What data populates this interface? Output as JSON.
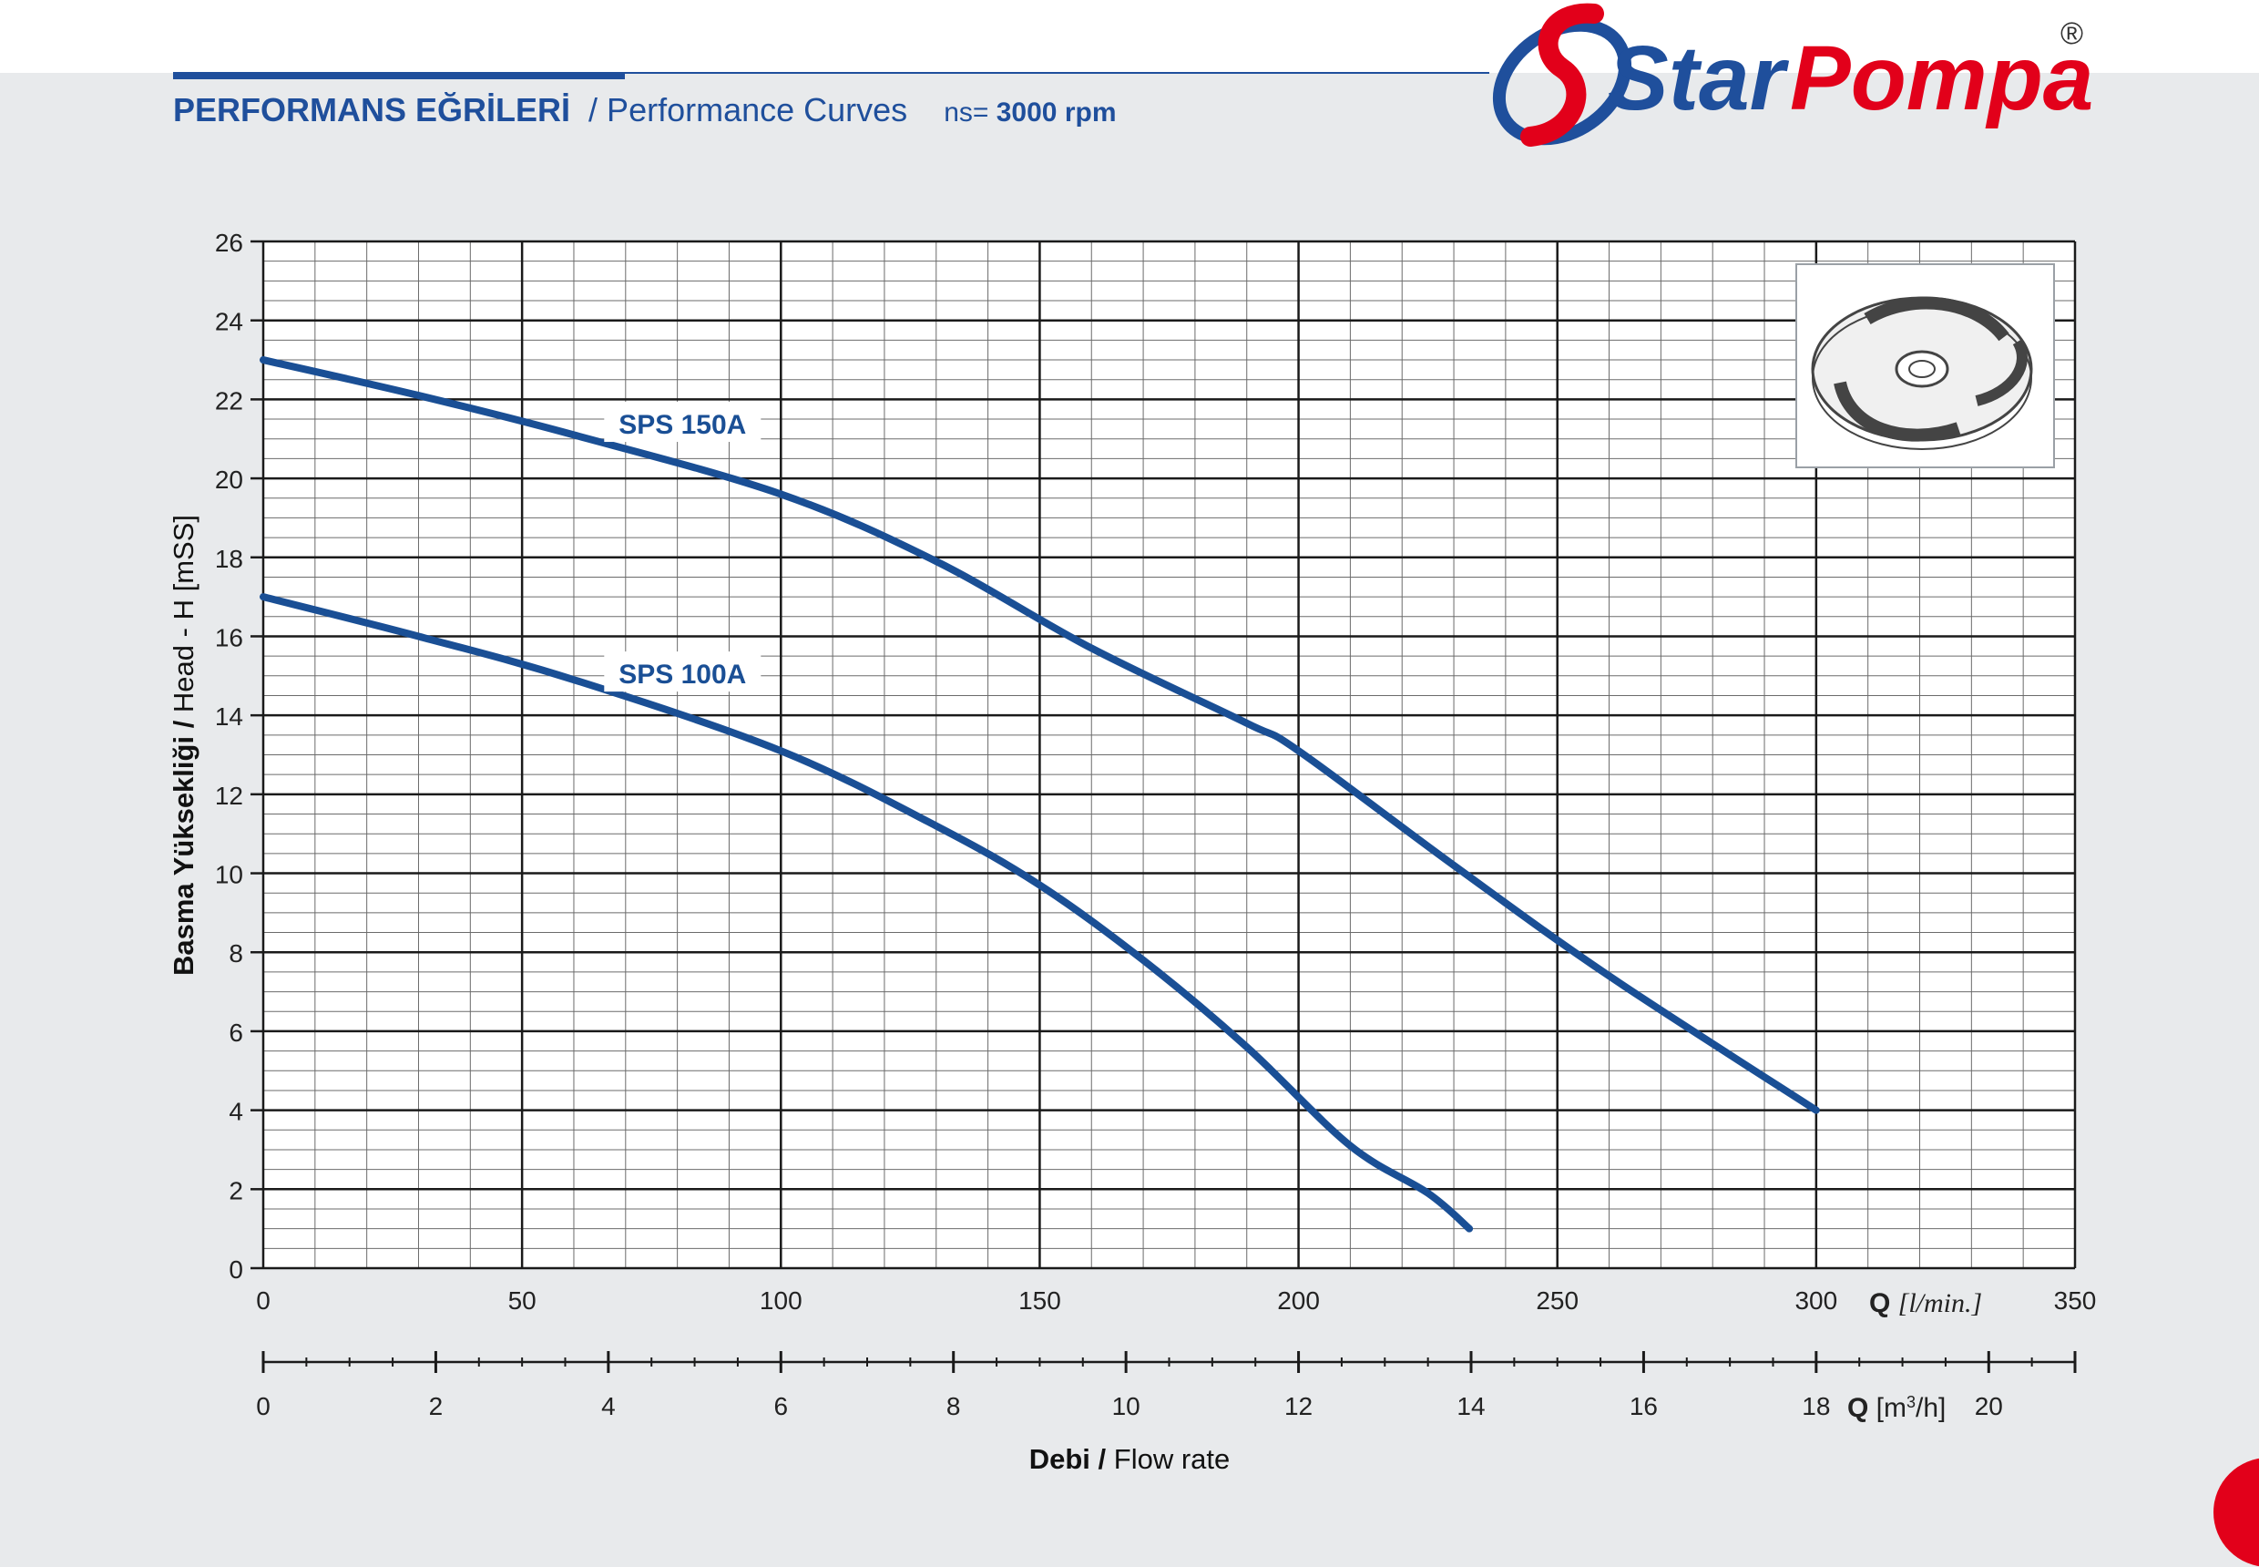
{
  "header": {
    "title_tr": "PERFORMANS EĞRİLERİ",
    "title_en": "/ Performance Curves",
    "rpm_prefix": "ns=",
    "rpm_value": "3000 rpm"
  },
  "logo": {
    "text_blue": "Star",
    "text_red": "Pompa",
    "registered": "®"
  },
  "colors": {
    "brand_blue": "#1f4f9c",
    "brand_red": "#e2001a",
    "curve": "#1a4f95"
  },
  "chart_data": {
    "type": "line",
    "ylabel_bold": "Basma Yüksekliği /",
    "ylabel_rest": " Head - H [mSS]",
    "xlabel_bold": "Debi /",
    "xlabel_rest": " Flow rate",
    "x_unit_q": "Q",
    "x_unit_lmin": "[l/min.]",
    "x_unit_m3h_pre": "[m",
    "x_unit_m3h_sup": "3",
    "x_unit_m3h_post": "/h]",
    "xlim": [
      0,
      350
    ],
    "ylim": [
      0,
      26
    ],
    "x_ticks": [
      "0",
      "50",
      "100",
      "150",
      "200",
      "250",
      "300",
      "350"
    ],
    "x2_ticks": [
      "0",
      "2",
      "4",
      "6",
      "8",
      "10",
      "12",
      "14",
      "16",
      "18",
      "20"
    ],
    "y_ticks": [
      "0",
      "2",
      "4",
      "6",
      "8",
      "10",
      "12",
      "14",
      "16",
      "18",
      "20",
      "22",
      "24",
      "26"
    ],
    "series": [
      {
        "name": "SPS 150A",
        "x": [
          0,
          30,
          60,
          100,
          130,
          160,
          190,
          200,
          230,
          260,
          300
        ],
        "y": [
          23,
          22.1,
          21.1,
          19.6,
          17.9,
          15.7,
          13.8,
          13.1,
          10.2,
          7.4,
          4
        ]
      },
      {
        "name": "SPS 100A",
        "x": [
          0,
          30,
          60,
          100,
          130,
          150,
          170,
          190,
          210,
          225,
          233
        ],
        "y": [
          17,
          16,
          14.9,
          13.1,
          11.2,
          9.7,
          7.8,
          5.6,
          3.1,
          1.9,
          1
        ]
      }
    ]
  }
}
